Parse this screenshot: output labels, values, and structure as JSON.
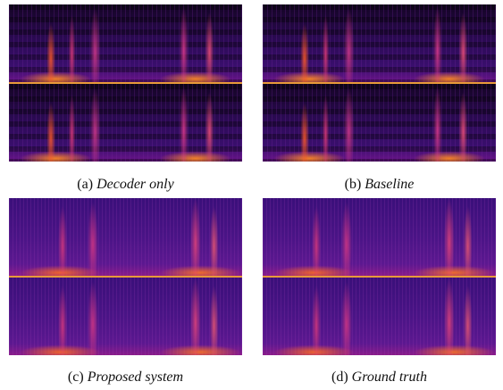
{
  "panels": [
    {
      "label": "(a)",
      "caption": "Decoder only"
    },
    {
      "label": "(b)",
      "caption": "Baseline"
    },
    {
      "label": "(c)",
      "caption": "Proposed system"
    },
    {
      "label": "(d)",
      "caption": "Ground truth"
    }
  ]
}
